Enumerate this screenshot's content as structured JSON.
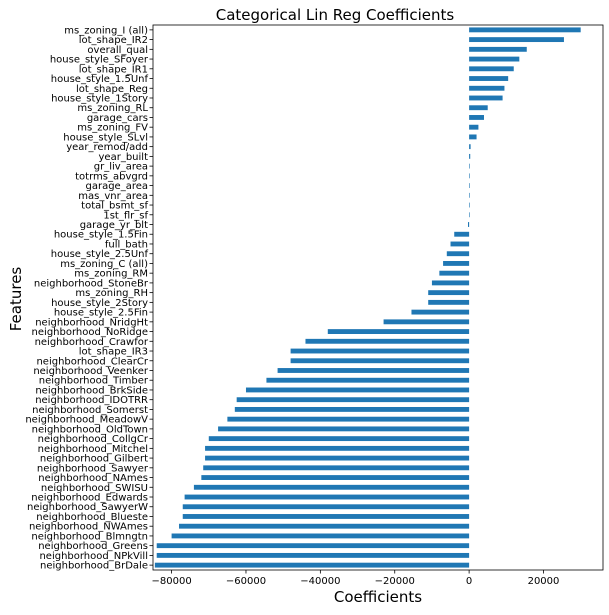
{
  "chart_data": {
    "type": "bar",
    "orientation": "horizontal",
    "title": "Categorical Lin Reg Coefficients",
    "xlabel": "Coefficients",
    "ylabel": "Features",
    "xlim": [
      -85000,
      36000
    ],
    "xticks": [
      -80000,
      -60000,
      -40000,
      -20000,
      0,
      20000
    ],
    "xtick_labels": [
      "−80000",
      "−60000",
      "−40000",
      "−20000",
      "0",
      "20000"
    ],
    "grid": false,
    "bar_color": "#1f77b4",
    "categories": [
      "ms_zoning_I (all)",
      "lot_shape_IR2",
      "overall_qual",
      "house_style_SFoyer",
      "lot_shape_IR1",
      "house_style_1.5Unf",
      "lot_shape_Reg",
      "house_style_1Story",
      "ms_zoning_RL",
      "garage_cars",
      "ms_zoning_FV",
      "house_style_SLvl",
      "year_remod/add",
      "year_built",
      "gr_liv_area",
      "totrms_abvgrd",
      "garage_area",
      "mas_vnr_area",
      "total_bsmt_sf",
      "1st_flr_sf",
      "garage_yr_blt",
      "house_style_1.5Fin",
      "full_bath",
      "house_style_2.5Unf",
      "ms_zoning_C (all)",
      "ms_zoning_RM",
      "neighborhood_StoneBr",
      "ms_zoning_RH",
      "house_style_2Story",
      "house_style_2.5Fin",
      "neighborhood_NridgHt",
      "neighborhood_NoRidge",
      "neighborhood_Crawfor",
      "lot_shape_IR3",
      "neighborhood_ClearCr",
      "neighborhood_Veenker",
      "neighborhood_Timber",
      "neighborhood_BrkSide",
      "neighborhood_IDOTRR",
      "neighborhood_Somerst",
      "neighborhood_MeadowV",
      "neighborhood_OldTown",
      "neighborhood_CollgCr",
      "neighborhood_Mitchel",
      "neighborhood_Gilbert",
      "neighborhood_Sawyer",
      "neighborhood_NAmes",
      "neighborhood_SWISU",
      "neighborhood_Edwards",
      "neighborhood_SawyerW",
      "neighborhood_Blueste",
      "neighborhood_NWAmes",
      "neighborhood_Blmngtn",
      "neighborhood_Greens",
      "neighborhood_NPkVill",
      "neighborhood_BrDale"
    ],
    "values": [
      30000,
      25500,
      15500,
      13500,
      12000,
      10500,
      9500,
      9000,
      5000,
      4000,
      2500,
      2000,
      400,
      300,
      100,
      50,
      50,
      50,
      30,
      20,
      -300,
      -4000,
      -5000,
      -6000,
      -7000,
      -8000,
      -10000,
      -11000,
      -11000,
      -15500,
      -23000,
      -38000,
      -44000,
      -48000,
      -48000,
      -51500,
      -54500,
      -60000,
      -62500,
      -63000,
      -65000,
      -67500,
      -70000,
      -71000,
      -71000,
      -71500,
      -72000,
      -74000,
      -76500,
      -77000,
      -77000,
      -78000,
      -80000,
      -84000,
      -84000,
      -84500
    ]
  }
}
